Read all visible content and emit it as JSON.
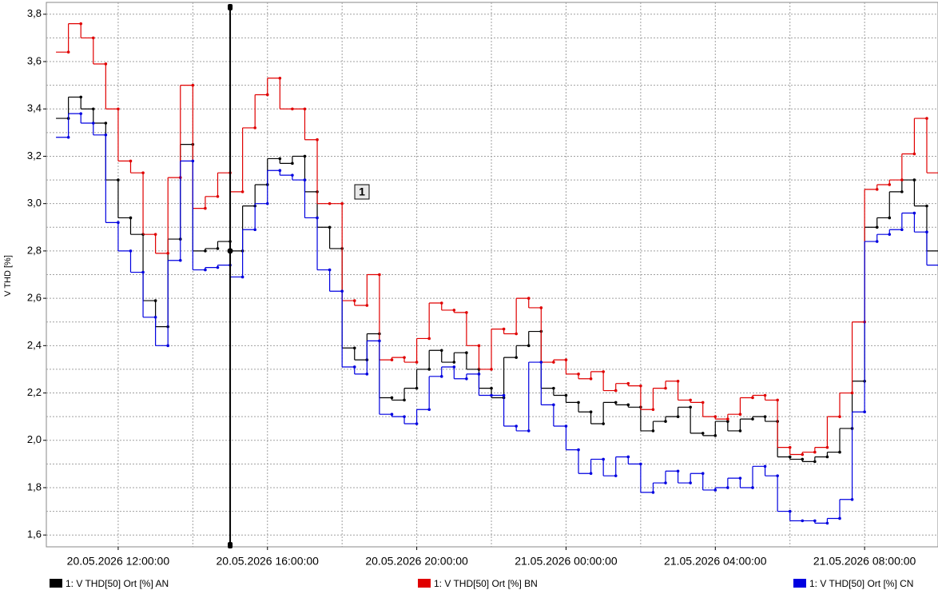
{
  "chart_data": {
    "type": "step",
    "y_label": "V THD [%]",
    "xlim": [
      "20.05.2026 10:04:30",
      "21.05.2026 09:58:00"
    ],
    "xticks": [
      "20.05.2026 12:00:00",
      "20.05.2026 16:00:00",
      "20.05.2026 20:00:00",
      "21.05.2026 00:00:00",
      "21.05.2026 04:00:00",
      "21.05.2026 08:00:00"
    ],
    "ylim": [
      1.55,
      3.85
    ],
    "yticks": [
      {
        "value": 1.6,
        "label": "1,6"
      },
      {
        "value": 1.8,
        "label": "1,8"
      },
      {
        "value": 2.0,
        "label": "2,0"
      },
      {
        "value": 2.2,
        "label": "2,2"
      },
      {
        "value": 2.4,
        "label": "2,4"
      },
      {
        "value": 2.6,
        "label": "2,6"
      },
      {
        "value": 2.8,
        "label": "2,8"
      },
      {
        "value": 3.0,
        "label": "3,0"
      },
      {
        "value": 3.2,
        "label": "3,2"
      },
      {
        "value": 3.4,
        "label": "3,4"
      },
      {
        "value": 3.6,
        "label": "3,6"
      },
      {
        "value": 3.8,
        "label": "3,8"
      }
    ],
    "grid": true,
    "cursor": {
      "x": "20.05.2026 15:00:00",
      "label": "1"
    },
    "x": [
      "20.05.2026 10:20:00",
      "20.05.2026 10:40:00",
      "20.05.2026 11:00:00",
      "20.05.2026 11:20:00",
      "20.05.2026 11:40:00",
      "20.05.2026 12:00:00",
      "20.05.2026 12:20:00",
      "20.05.2026 12:40:00",
      "20.05.2026 13:00:00",
      "20.05.2026 13:20:00",
      "20.05.2026 13:40:00",
      "20.05.2026 14:00:00",
      "20.05.2026 14:20:00",
      "20.05.2026 14:40:00",
      "20.05.2026 15:00:00",
      "20.05.2026 15:20:00",
      "20.05.2026 15:40:00",
      "20.05.2026 16:00:00",
      "20.05.2026 16:20:00",
      "20.05.2026 16:40:00",
      "20.05.2026 17:00:00",
      "20.05.2026 17:20:00",
      "20.05.2026 17:40:00",
      "20.05.2026 18:00:00",
      "20.05.2026 18:20:00",
      "20.05.2026 18:40:00",
      "20.05.2026 19:00:00",
      "20.05.2026 19:20:00",
      "20.05.2026 19:40:00",
      "20.05.2026 20:00:00",
      "20.05.2026 20:20:00",
      "20.05.2026 20:40:00",
      "20.05.2026 21:00:00",
      "20.05.2026 21:20:00",
      "20.05.2026 21:40:00",
      "20.05.2026 22:00:00",
      "20.05.2026 22:20:00",
      "20.05.2026 22:40:00",
      "20.05.2026 23:00:00",
      "20.05.2026 23:20:00",
      "20.05.2026 23:40:00",
      "21.05.2026 00:00:00",
      "21.05.2026 00:20:00",
      "21.05.2026 00:40:00",
      "21.05.2026 01:00:00",
      "21.05.2026 01:20:00",
      "21.05.2026 01:40:00",
      "21.05.2026 02:00:00",
      "21.05.2026 02:20:00",
      "21.05.2026 02:40:00",
      "21.05.2026 03:00:00",
      "21.05.2026 03:20:00",
      "21.05.2026 03:40:00",
      "21.05.2026 04:00:00",
      "21.05.2026 04:20:00",
      "21.05.2026 04:40:00",
      "21.05.2026 05:00:00",
      "21.05.2026 05:20:00",
      "21.05.2026 05:40:00",
      "21.05.2026 06:00:00",
      "21.05.2026 06:20:00",
      "21.05.2026 06:40:00",
      "21.05.2026 07:00:00",
      "21.05.2026 07:20:00",
      "21.05.2026 07:40:00",
      "21.05.2026 08:00:00",
      "21.05.2026 08:20:00",
      "21.05.2026 08:40:00",
      "21.05.2026 09:00:00",
      "21.05.2026 09:20:00",
      "21.05.2026 09:40:00"
    ],
    "series": [
      {
        "name": "1: V THD[50] Ort [%] AN",
        "color": "#000000",
        "values": [
          3.36,
          3.45,
          3.4,
          3.34,
          3.1,
          2.94,
          2.87,
          2.59,
          2.48,
          2.85,
          3.25,
          2.8,
          2.81,
          2.84,
          2.8,
          2.99,
          3.08,
          3.19,
          3.17,
          3.2,
          3.05,
          2.9,
          2.81,
          2.39,
          2.34,
          2.45,
          2.18,
          2.17,
          2.22,
          2.3,
          2.38,
          2.33,
          2.37,
          2.3,
          2.22,
          2.18,
          2.35,
          2.4,
          2.46,
          2.22,
          2.19,
          2.16,
          2.12,
          2.07,
          2.16,
          2.15,
          2.14,
          2.04,
          2.08,
          2.1,
          2.14,
          2.03,
          2.02,
          2.08,
          2.04,
          2.09,
          2.1,
          2.08,
          1.93,
          1.92,
          1.91,
          1.93,
          1.95,
          2.05,
          2.25,
          2.9,
          2.94,
          3.05,
          3.1,
          2.99,
          2.8
        ]
      },
      {
        "name": "1: V THD[50] Ort [%] BN",
        "color": "#e00000",
        "values": [
          3.64,
          3.76,
          3.7,
          3.59,
          3.4,
          3.18,
          3.13,
          2.87,
          2.79,
          3.11,
          3.5,
          2.98,
          3.03,
          3.13,
          3.05,
          3.32,
          3.46,
          3.53,
          3.4,
          3.4,
          3.27,
          3.0,
          3.0,
          2.59,
          2.57,
          2.7,
          2.34,
          2.35,
          2.33,
          2.43,
          2.58,
          2.55,
          2.54,
          2.4,
          2.3,
          2.47,
          2.45,
          2.6,
          2.56,
          2.33,
          2.34,
          2.28,
          2.26,
          2.29,
          2.21,
          2.24,
          2.23,
          2.13,
          2.22,
          2.25,
          2.17,
          2.16,
          2.1,
          2.09,
          2.11,
          2.18,
          2.19,
          2.17,
          1.97,
          1.94,
          1.95,
          1.97,
          2.1,
          2.2,
          2.5,
          3.06,
          3.08,
          3.1,
          3.21,
          3.36,
          3.13
        ]
      },
      {
        "name": "1: V THD[50] Ort [%] CN",
        "color": "#0000e0",
        "values": [
          3.28,
          3.38,
          3.34,
          3.29,
          2.92,
          2.8,
          2.71,
          2.52,
          2.4,
          2.76,
          3.18,
          2.72,
          2.73,
          2.74,
          2.69,
          2.89,
          3.0,
          3.14,
          3.12,
          3.1,
          2.94,
          2.72,
          2.63,
          2.31,
          2.28,
          2.42,
          2.11,
          2.1,
          2.07,
          2.13,
          2.27,
          2.31,
          2.26,
          2.28,
          2.19,
          2.19,
          2.06,
          2.04,
          2.33,
          2.15,
          2.06,
          1.96,
          1.86,
          1.92,
          1.85,
          1.93,
          1.9,
          1.78,
          1.82,
          1.87,
          1.82,
          1.86,
          1.79,
          1.8,
          1.84,
          1.8,
          1.89,
          1.85,
          1.7,
          1.66,
          1.66,
          1.65,
          1.67,
          1.75,
          2.12,
          2.84,
          2.87,
          2.89,
          2.96,
          2.88,
          2.74
        ]
      }
    ]
  }
}
